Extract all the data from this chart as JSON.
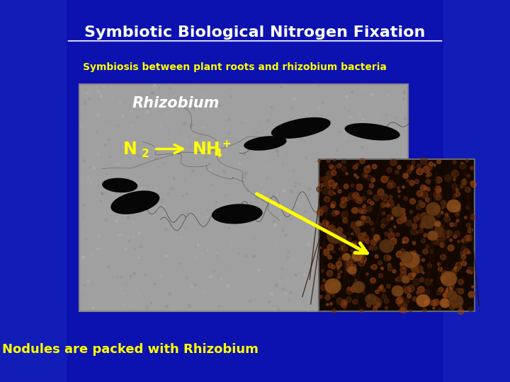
{
  "title": "Symbiotic Biological Nitrogen Fixation",
  "subtitle": "Symbiosis between plant roots and rhizobium bacteria",
  "label_rhizobium": "Rhizobium",
  "label_n2": "N",
  "label_n2_sub": "2",
  "label_nh4": "NH",
  "label_nh4_sub": "4",
  "label_nh4_sup": "+",
  "bottom_text": "Nodules are packed with Rhizobium",
  "title_color": "#ffffff",
  "subtitle_color": "#ffff00",
  "label_color": "#ffff00",
  "bottom_text_color": "#ffff00",
  "arrow_color": "#ffff00",
  "bg_color": "#0c12b0"
}
